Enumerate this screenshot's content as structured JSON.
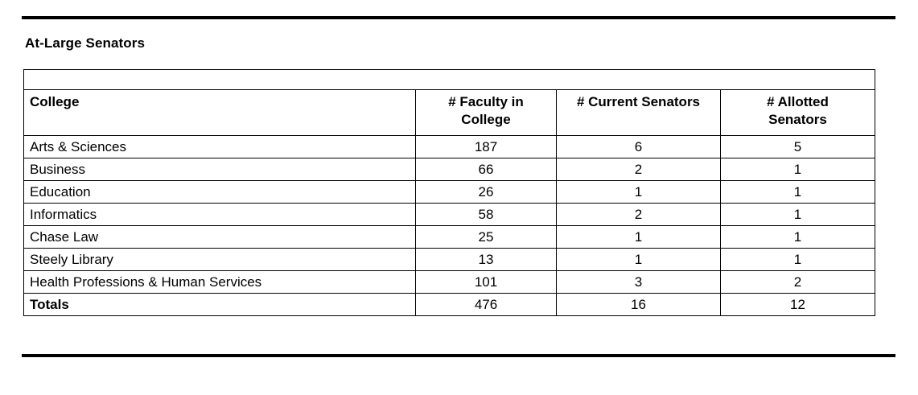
{
  "title": "At-Large Senators",
  "table": {
    "headers": [
      {
        "label": "College",
        "lines": [
          "College"
        ]
      },
      {
        "label": "# Faculty in College",
        "lines": [
          "# Faculty in",
          "College"
        ]
      },
      {
        "label": "# Current Senators",
        "lines": [
          "# Current Senators"
        ]
      },
      {
        "label": "# Allotted Senators",
        "lines": [
          "# Allotted",
          "Senators"
        ]
      }
    ],
    "rows": [
      {
        "college": "Arts & Sciences",
        "faculty_in_college": "187",
        "current_senators": "6",
        "allotted_senators": "5"
      },
      {
        "college": "Business",
        "faculty_in_college": "66",
        "current_senators": "2",
        "allotted_senators": "1"
      },
      {
        "college": "Education",
        "faculty_in_college": "26",
        "current_senators": "1",
        "allotted_senators": "1"
      },
      {
        "college": "Informatics",
        "faculty_in_college": "58",
        "current_senators": "2",
        "allotted_senators": "1"
      },
      {
        "college": "Chase Law",
        "faculty_in_college": "25",
        "current_senators": "1",
        "allotted_senators": "1"
      },
      {
        "college": "Steely Library",
        "faculty_in_college": "13",
        "current_senators": "1",
        "allotted_senators": "1"
      },
      {
        "college": "Health Professions & Human Services",
        "faculty_in_college": "101",
        "current_senators": "3",
        "allotted_senators": "2"
      }
    ],
    "totals_row": {
      "college": "Totals",
      "faculty_in_college": "476",
      "current_senators": "16",
      "allotted_senators": "12"
    }
  },
  "colors": {
    "text": "#000000",
    "border": "#000000",
    "background": "#ffffff"
  }
}
